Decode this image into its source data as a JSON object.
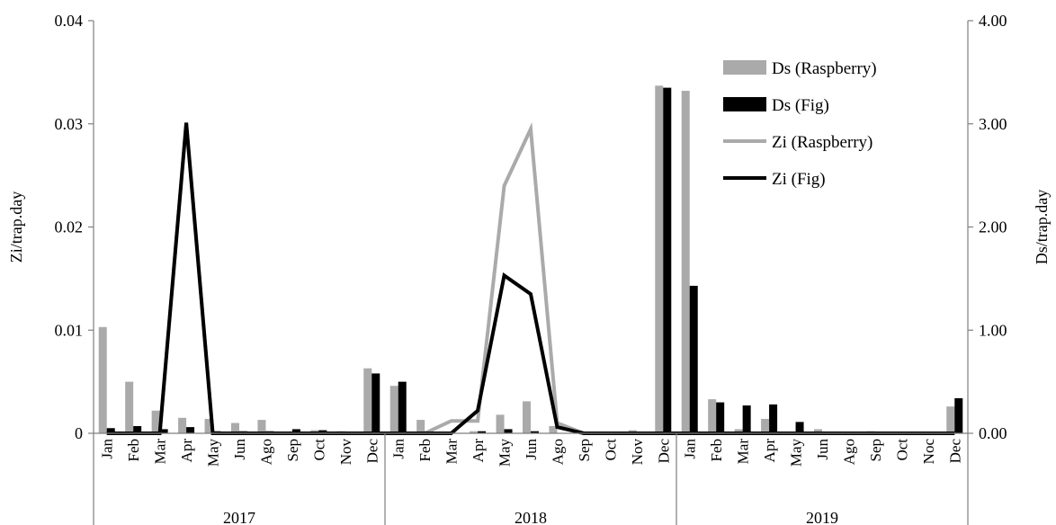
{
  "chart_data": {
    "type": "bar",
    "title": "",
    "categories": [
      "Jan",
      "Feb",
      "Mar",
      "Apr",
      "May",
      "Jun",
      "Ago",
      "Sep",
      "Oct",
      "Nov",
      "Dec",
      "Jan",
      "Feb",
      "Mar",
      "Apr",
      "May",
      "Jun",
      "Ago",
      "Sep",
      "Oct",
      "Nov",
      "Dec",
      "Jan",
      "Feb",
      "Mar",
      "Apr",
      "May",
      "Jun",
      "Ago",
      "Sep",
      "Oct",
      "Noc",
      "Dec"
    ],
    "groups": [
      {
        "label": "2017",
        "start": 0,
        "end": 10
      },
      {
        "label": "2018",
        "start": 11,
        "end": 21
      },
      {
        "label": "2019",
        "start": 22,
        "end": 32
      }
    ],
    "y_left": {
      "label": "Zi/trap.day",
      "min": 0,
      "max": 0.04,
      "ticks": [
        0,
        0.01,
        0.02,
        0.03,
        0.04
      ],
      "tick_labels": [
        "0",
        "0.01",
        "0.02",
        "0.03",
        "0.04"
      ]
    },
    "y_right": {
      "label": "Ds/trap.day",
      "min": 0,
      "max": 4,
      "ticks": [
        0,
        1,
        2,
        3,
        4
      ],
      "tick_labels": [
        "0.00",
        "1.00",
        "2.00",
        "3.00",
        "4.00"
      ]
    },
    "grid": false,
    "legend_position": "top-right",
    "series": [
      {
        "name": "Ds (Raspberry)",
        "kind": "bar",
        "axis": "right",
        "color": "#aaaaaa",
        "values": [
          1.03,
          0.5,
          0.22,
          0.15,
          0.14,
          0.1,
          0.13,
          0.0,
          0.03,
          0.02,
          0.63,
          0.46,
          0.13,
          0.0,
          0.02,
          0.18,
          0.31,
          0.07,
          0.0,
          0.0,
          0.03,
          3.37,
          3.32,
          0.33,
          0.04,
          0.14,
          0.0,
          0.04,
          0.0,
          0.02,
          0.0,
          0.0,
          0.26
        ]
      },
      {
        "name": "Ds (Fig)",
        "kind": "bar",
        "axis": "right",
        "color": "#000000",
        "values": [
          0.05,
          0.07,
          0.04,
          0.06,
          0.02,
          0.02,
          0.02,
          0.04,
          0.03,
          0.0,
          0.58,
          0.5,
          0.02,
          0.0,
          0.02,
          0.04,
          0.02,
          0.0,
          0.0,
          0.0,
          0.0,
          3.35,
          1.43,
          0.3,
          0.27,
          0.28,
          0.11,
          0.0,
          0.0,
          0.0,
          0.0,
          0.0,
          0.34
        ]
      },
      {
        "name": "Zi (Raspberry)",
        "kind": "line",
        "axis": "left",
        "color": "#aaaaaa",
        "values": [
          0,
          0,
          0,
          0.0301,
          0,
          0,
          0,
          0,
          0,
          0,
          0,
          0,
          0,
          0.0012,
          0.0012,
          0.024,
          0.0295,
          0.001,
          0,
          0,
          0,
          0,
          0,
          0,
          0,
          0,
          0,
          0,
          0,
          0,
          0,
          0,
          0
        ]
      },
      {
        "name": "Zi (Fig)",
        "kind": "line",
        "axis": "left",
        "color": "#000000",
        "values": [
          0,
          0,
          0,
          0.0301,
          0,
          0,
          0,
          0,
          0,
          0,
          0,
          0,
          0,
          0,
          0.0022,
          0.0153,
          0.0135,
          0.0006,
          0,
          0,
          0,
          0,
          0,
          0,
          0,
          0,
          0,
          0,
          0,
          0,
          0,
          0,
          0
        ]
      }
    ]
  }
}
